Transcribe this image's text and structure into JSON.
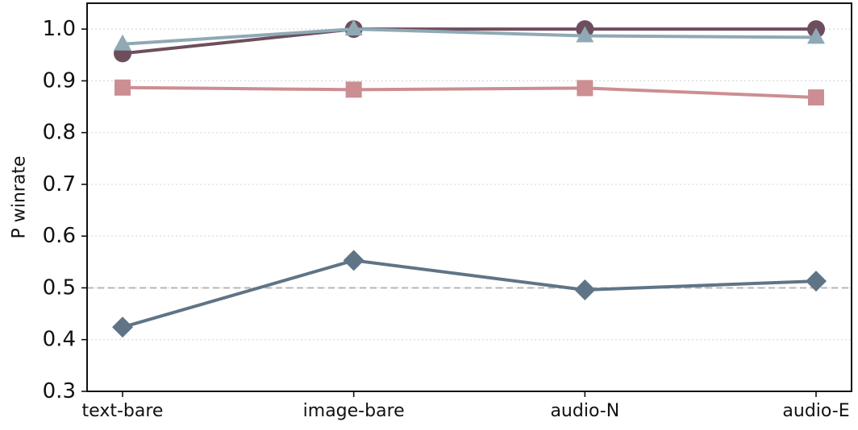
{
  "chart_data": {
    "type": "line",
    "title": "",
    "xlabel": "",
    "ylabel": "P winrate",
    "categories": [
      "text-bare",
      "image-bare",
      "audio-N",
      "audio-E"
    ],
    "ylim": [
      0.3,
      1.05
    ],
    "yticks": [
      0.3,
      0.4,
      0.5,
      0.6,
      0.7,
      0.8,
      0.9,
      1.0
    ],
    "ytick_labels": [
      "0.3",
      "0.4",
      "0.5",
      "0.6",
      "0.7",
      "0.8",
      "0.9",
      "1.0"
    ],
    "grid": "horizontal-dotted",
    "reference_line": {
      "y": 0.5,
      "style": "dashed",
      "color": "#b7b7b7"
    },
    "series": [
      {
        "marker": "circle",
        "color": "#6e4e5d",
        "values": [
          0.953,
          1.0,
          1.0,
          1.0
        ]
      },
      {
        "marker": "square",
        "color": "#cc8e92",
        "values": [
          0.887,
          0.883,
          0.886,
          0.868
        ]
      },
      {
        "marker": "triangle",
        "color": "#8fa9b5",
        "values": [
          0.971,
          1.0,
          0.987,
          0.984
        ]
      },
      {
        "marker": "diamond",
        "color": "#5f7486",
        "values": [
          0.424,
          0.553,
          0.496,
          0.513
        ]
      }
    ]
  }
}
